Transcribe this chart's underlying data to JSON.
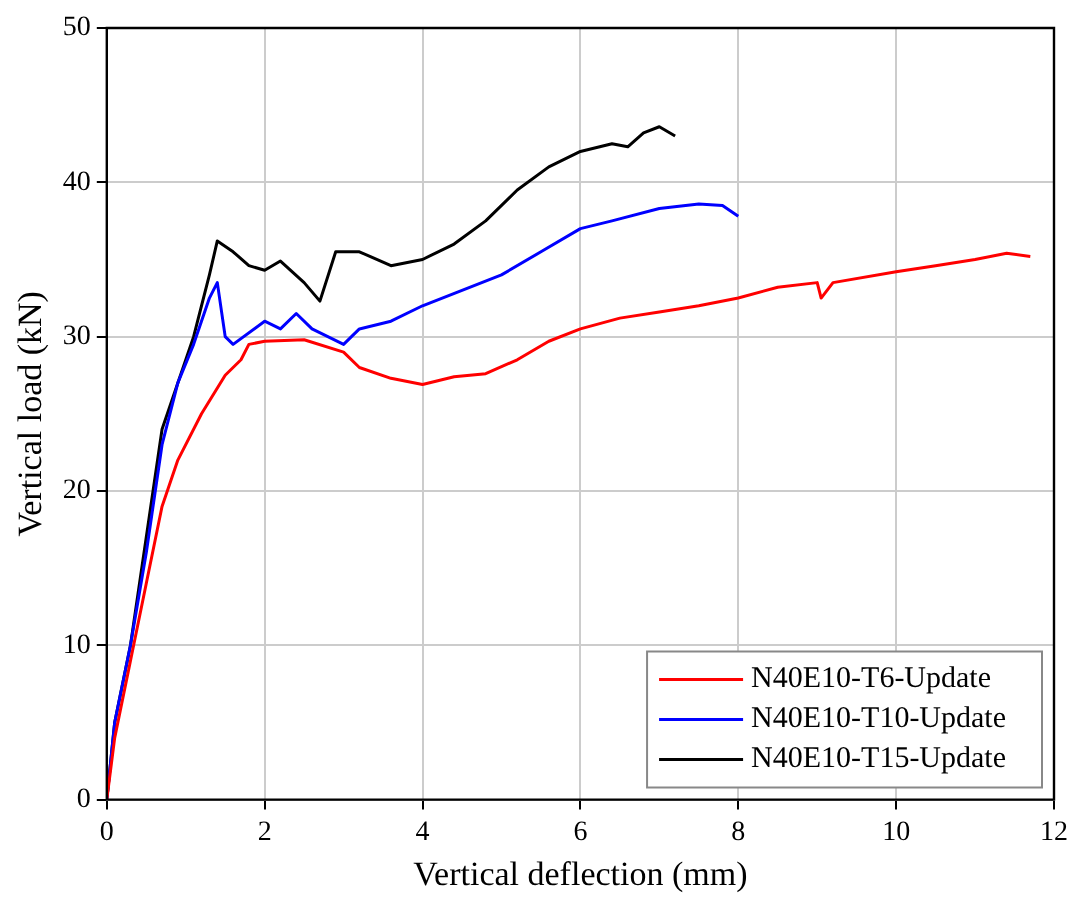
{
  "chart_data": {
    "type": "line",
    "xlabel": "Vertical deflection (mm)",
    "ylabel": "Vertical load (kN)",
    "xlim": [
      0,
      12
    ],
    "xticks": [
      0,
      2,
      4,
      6,
      8,
      10,
      12
    ],
    "ylim": [
      0,
      50
    ],
    "yticks": [
      0,
      10,
      20,
      30,
      40,
      50
    ],
    "grid": true,
    "legend": "bottom right",
    "marker": "none",
    "line_style": "solid",
    "series": [
      {
        "name": "N40E10-T6-Update",
        "color": "#ff0000",
        "x": [
          0,
          0.1,
          0.3,
          0.5,
          0.7,
          0.9,
          1.2,
          1.5,
          1.7,
          1.8,
          2,
          2.5,
          3,
          3.2,
          3.6,
          4,
          4.4,
          4.8,
          5.2,
          5.6,
          6,
          6.5,
          7,
          7.5,
          8,
          8.5,
          9,
          9.05,
          9.2,
          10,
          10.5,
          11,
          11.4,
          11.7
        ],
        "values": [
          0,
          4,
          9,
          14,
          19,
          22,
          25,
          27.5,
          28.5,
          29.5,
          29.7,
          29.8,
          29,
          28,
          27.3,
          26.9,
          27.4,
          27.6,
          28.5,
          29.7,
          30.5,
          31.2,
          31.6,
          32,
          32.5,
          33.2,
          33.5,
          32.5,
          33.5,
          34.2,
          34.6,
          35,
          35.4,
          35.2
        ]
      },
      {
        "name": "N40E10-T10-Update",
        "color": "#0000ff",
        "x": [
          0,
          0.1,
          0.3,
          0.5,
          0.7,
          0.9,
          1.1,
          1.3,
          1.4,
          1.5,
          1.6,
          2,
          2.2,
          2.4,
          2.6,
          3,
          3.2,
          3.6,
          4,
          4.5,
          5,
          5.5,
          6,
          6.4,
          7,
          7.5,
          7.8,
          8
        ],
        "values": [
          0,
          5,
          10,
          16,
          23,
          27,
          29.5,
          32.5,
          33.5,
          30,
          29.5,
          31,
          30.5,
          31.5,
          30.5,
          29.5,
          30.5,
          31,
          32,
          33,
          34,
          35.5,
          37,
          37.5,
          38.3,
          38.6,
          38.5,
          37.8
        ]
      },
      {
        "name": "N40E10-T15-Update",
        "color": "#000000",
        "x": [
          0,
          0.1,
          0.3,
          0.5,
          0.7,
          0.9,
          1.1,
          1.3,
          1.4,
          1.6,
          1.8,
          2,
          2.2,
          2.5,
          2.7,
          2.9,
          3.2,
          3.6,
          4,
          4.4,
          4.8,
          5.2,
          5.6,
          6,
          6.4,
          6.6,
          6.8,
          7,
          7.2
        ],
        "values": [
          0,
          5,
          10,
          17,
          24,
          27,
          30,
          34,
          36.2,
          35.5,
          34.6,
          34.3,
          34.9,
          33.5,
          32.3,
          35.5,
          35.5,
          34.6,
          35,
          36,
          37.5,
          39.5,
          41,
          42,
          42.5,
          42.3,
          43.2,
          43.6,
          43
        ]
      }
    ]
  }
}
